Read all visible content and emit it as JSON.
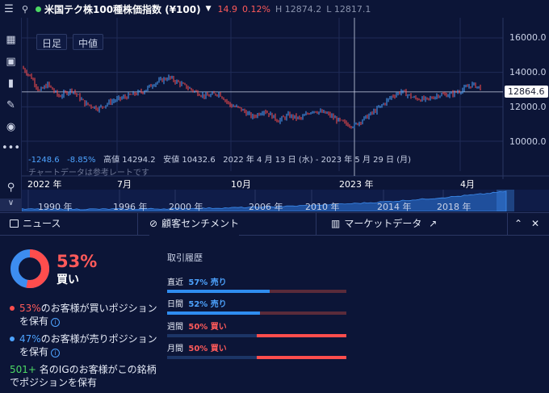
{
  "topbar": {
    "instrument": "米国テク株100種株価指数 (¥100)",
    "change": "14.9",
    "change_pct": "0.12%",
    "high": "H 12874.2",
    "low": "L 12817.1"
  },
  "chart": {
    "timeframe_label": "日足",
    "price_type_label": "中値",
    "current_price": "12864.6",
    "y_ticks": [
      "16000.0",
      "14000.0",
      "12000.0",
      "10000.0"
    ],
    "x_ticks": [
      "2022 年",
      "7月",
      "10月",
      "2023 年",
      "4月"
    ],
    "stats": {
      "change": "-1248.6",
      "change_pct": "-8.85%",
      "high": "高値 14294.2",
      "low": "安値 10432.6",
      "range": "2022 年 4 月 13 日 (水) - 2023 年 5 月 29 日 (月)"
    },
    "note": "チャートデータは参考レートです",
    "navigator_labels": [
      "1990 年",
      "1996 年",
      "2000 年",
      "2006 年",
      "2010 年",
      "2014 年",
      "2018 年"
    ],
    "colors": {
      "up": "#4da3ff",
      "down": "#ff4d4d"
    }
  },
  "tabs": {
    "news": "ニュース",
    "sentiment": "顧客センチメント",
    "market": "マーケットデータ"
  },
  "sentiment": {
    "buy_pct": "53%",
    "buy_label": "買い",
    "buy_fraction": 0.53,
    "line1_pct": "53%",
    "line1_text": "のお客様が買いポジション",
    "line1_text2": "を保有",
    "line2_pct": "47%",
    "line2_text": "のお客様が売りポジション",
    "line2_text2": "を保有",
    "count": "501+",
    "count_text": "名のIGのお客様がこの銘柄",
    "count_text2": "でポジションを保有"
  },
  "history": {
    "title": "取引履歴",
    "rows": [
      {
        "label": "直近",
        "value": "57% 売り",
        "side": "sell",
        "fraction": 0.57
      },
      {
        "label": "日間",
        "value": "52% 売り",
        "side": "sell",
        "fraction": 0.52
      },
      {
        "label": "週間",
        "value": "50% 買い",
        "side": "buy",
        "fraction": 0.5
      },
      {
        "label": "月間",
        "value": "50% 買い",
        "side": "buy",
        "fraction": 0.5
      }
    ]
  }
}
